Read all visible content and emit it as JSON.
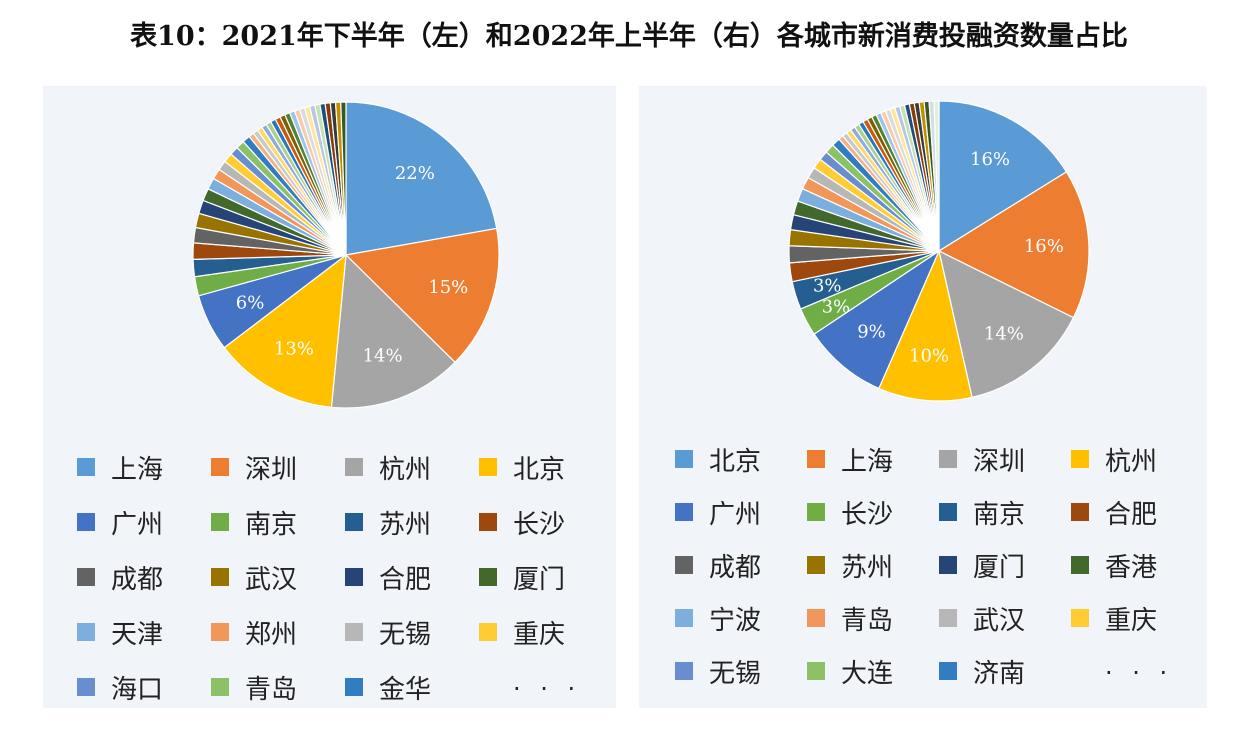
{
  "title": "表10：2021年下半年（左）和2022年上半年（右）各城市新消费投融资数量占比",
  "chart_data": [
    {
      "type": "pie",
      "title": "",
      "unit": "%",
      "slices": [
        {
          "label": "上海",
          "value": 22,
          "color": "#5b9bd5",
          "shown": "22%"
        },
        {
          "label": "深圳",
          "value": 15,
          "color": "#ed7d31",
          "shown": "15%"
        },
        {
          "label": "杭州",
          "value": 14,
          "color": "#a5a5a5",
          "shown": "14%"
        },
        {
          "label": "北京",
          "value": 13,
          "color": "#ffc000",
          "shown": "13%"
        },
        {
          "label": "广州",
          "value": 6,
          "color": "#4472c4",
          "shown": "6%"
        },
        {
          "label": "南京",
          "value": 2,
          "color": "#70ad47",
          "shown": ""
        },
        {
          "label": "苏州",
          "value": 1.8,
          "color": "#255e91",
          "shown": ""
        },
        {
          "label": "长沙",
          "value": 1.7,
          "color": "#9e480e",
          "shown": ""
        },
        {
          "label": "成都",
          "value": 1.6,
          "color": "#636363",
          "shown": ""
        },
        {
          "label": "武汉",
          "value": 1.5,
          "color": "#997300",
          "shown": ""
        },
        {
          "label": "合肥",
          "value": 1.4,
          "color": "#264478",
          "shown": ""
        },
        {
          "label": "厦门",
          "value": 1.3,
          "color": "#43682b",
          "shown": ""
        },
        {
          "label": "天津",
          "value": 1.2,
          "color": "#7cafdd",
          "shown": ""
        },
        {
          "label": "郑州",
          "value": 1.1,
          "color": "#f1975a",
          "shown": ""
        },
        {
          "label": "无锡",
          "value": 1.0,
          "color": "#b7b7b7",
          "shown": ""
        },
        {
          "label": "重庆",
          "value": 1.0,
          "color": "#ffcd33",
          "shown": ""
        },
        {
          "label": "海口",
          "value": 0.9,
          "color": "#698ed0",
          "shown": ""
        },
        {
          "label": "青岛",
          "value": 0.9,
          "color": "#8cc168",
          "shown": ""
        },
        {
          "label": "金华",
          "value": 0.8,
          "color": "#327dc2",
          "shown": ""
        }
      ],
      "other_slice_colors": [
        "#f4b183",
        "#c9c9c9",
        "#ffd966",
        "#8faadc",
        "#a9d18e",
        "#2e75b6",
        "#c55a11",
        "#7f6000",
        "#548235",
        "#9dc3e6",
        "#f8cbad",
        "#dbdbdb",
        "#ffe699",
        "#b4c7e7",
        "#c5e0b4",
        "#1f4e79",
        "#843c0c",
        "#3a3a3a",
        "#bf9000",
        "#385723"
      ],
      "other_total": 10.8,
      "legend_more": ". . ."
    },
    {
      "type": "pie",
      "title": "",
      "unit": "%",
      "slices": [
        {
          "label": "北京",
          "value": 16,
          "color": "#5b9bd5",
          "shown": "16%"
        },
        {
          "label": "上海",
          "value": 16,
          "color": "#ed7d31",
          "shown": "16%"
        },
        {
          "label": "深圳",
          "value": 14,
          "color": "#a5a5a5",
          "shown": "14%"
        },
        {
          "label": "杭州",
          "value": 10,
          "color": "#ffc000",
          "shown": "10%"
        },
        {
          "label": "广州",
          "value": 9,
          "color": "#4472c4",
          "shown": "9%"
        },
        {
          "label": "长沙",
          "value": 3,
          "color": "#70ad47",
          "shown": "3%"
        },
        {
          "label": "南京",
          "value": 3,
          "color": "#255e91",
          "shown": "3%"
        },
        {
          "label": "合肥",
          "value": 2,
          "color": "#9e480e",
          "shown": ""
        },
        {
          "label": "成都",
          "value": 1.8,
          "color": "#636363",
          "shown": ""
        },
        {
          "label": "苏州",
          "value": 1.7,
          "color": "#997300",
          "shown": ""
        },
        {
          "label": "厦门",
          "value": 1.6,
          "color": "#264478",
          "shown": ""
        },
        {
          "label": "香港",
          "value": 1.5,
          "color": "#43682b",
          "shown": ""
        },
        {
          "label": "宁波",
          "value": 1.4,
          "color": "#7cafdd",
          "shown": ""
        },
        {
          "label": "青岛",
          "value": 1.3,
          "color": "#f1975a",
          "shown": ""
        },
        {
          "label": "武汉",
          "value": 1.2,
          "color": "#b7b7b7",
          "shown": ""
        },
        {
          "label": "重庆",
          "value": 1.1,
          "color": "#ffcd33",
          "shown": ""
        },
        {
          "label": "无锡",
          "value": 1.0,
          "color": "#698ed0",
          "shown": ""
        },
        {
          "label": "大连",
          "value": 1.0,
          "color": "#8cc168",
          "shown": ""
        },
        {
          "label": "济南",
          "value": 0.9,
          "color": "#327dc2",
          "shown": ""
        }
      ],
      "other_slice_colors": [
        "#f4b183",
        "#c9c9c9",
        "#ffd966",
        "#8faadc",
        "#a9d18e",
        "#2e75b6",
        "#c55a11",
        "#7f6000",
        "#548235",
        "#9dc3e6",
        "#f8cbad",
        "#dbdbdb",
        "#ffe699",
        "#b4c7e7",
        "#c5e0b4",
        "#1f4e79",
        "#843c0c",
        "#3a3a3a",
        "#bf9000",
        "#385723",
        "#d6dce5",
        "#e2f0d9"
      ],
      "other_total": 11.5,
      "legend_more": ". . ."
    }
  ]
}
